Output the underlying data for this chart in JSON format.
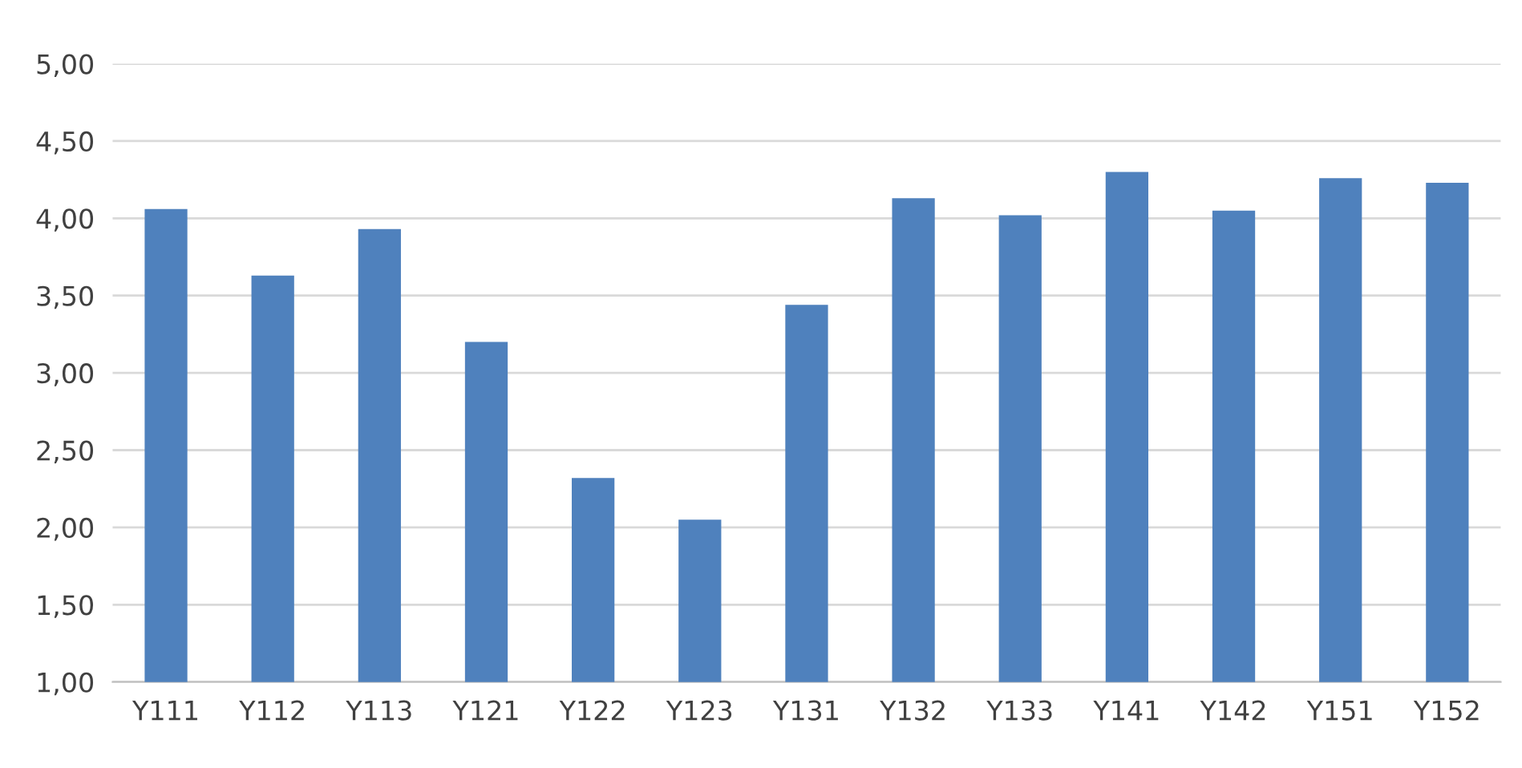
{
  "chart_data": {
    "type": "bar",
    "categories": [
      "Y111",
      "Y112",
      "Y113",
      "Y121",
      "Y122",
      "Y123",
      "Y131",
      "Y132",
      "Y133",
      "Y141",
      "Y142",
      "Y151",
      "Y152"
    ],
    "values": [
      4.06,
      3.63,
      3.93,
      3.2,
      2.32,
      2.05,
      3.44,
      4.13,
      4.02,
      4.3,
      4.05,
      4.26,
      4.23
    ],
    "color": "#4f81bd",
    "ylim": [
      1,
      5
    ],
    "yticks": [
      {
        "value": 1,
        "label": "1,00"
      },
      {
        "value": 1.5,
        "label": "1,50"
      },
      {
        "value": 2,
        "label": "2,00"
      },
      {
        "value": 2.5,
        "label": "2,50"
      },
      {
        "value": 3,
        "label": "3,00"
      },
      {
        "value": 3.5,
        "label": "3,50"
      },
      {
        "value": 4,
        "label": "4,00"
      },
      {
        "value": 4.5,
        "label": "4,50"
      },
      {
        "value": 5,
        "label": "5,00"
      }
    ],
    "grid": "y",
    "legend": false
  }
}
